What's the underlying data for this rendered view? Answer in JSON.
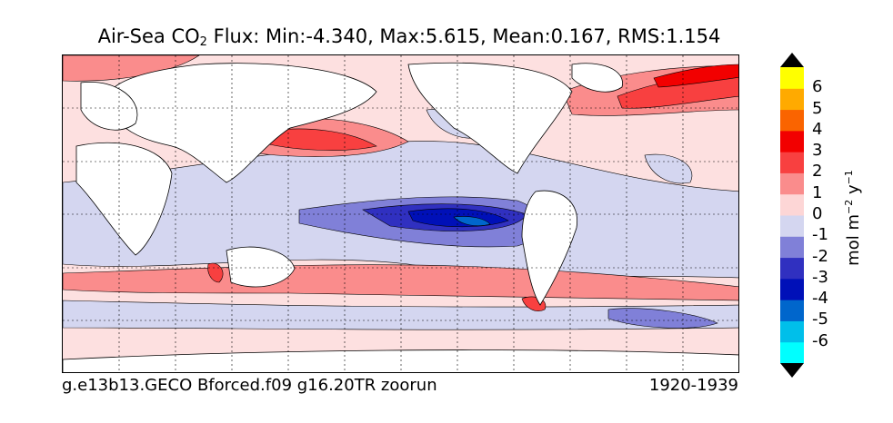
{
  "title": {
    "prefix": "Air-Sea CO",
    "subscript": "2",
    "suffix": " Flux: Min:-4.340, Max:5.615, Mean:0.167, RMS:1.154"
  },
  "footer": {
    "case_name": "g.e13b13.GECO Bforced.f09 g16.20TR zoorun",
    "period": "1920-1939"
  },
  "colorbar": {
    "label_main": "mol m",
    "label_exp1": "−2",
    "label_mid": " y",
    "label_exp2": "−1",
    "ticks": [
      "6",
      "5",
      "4",
      "3",
      "2",
      "1",
      "0",
      "-1",
      "-2",
      "-3",
      "-4",
      "-5",
      "-6"
    ],
    "colors": [
      "#00ffff",
      "#00bfea",
      "#0066cc",
      "#0010b8",
      "#3030c0",
      "#8080d8",
      "#d4d6f0",
      "#fdd6d6",
      "#fa8c8c",
      "#f84040",
      "#f20000",
      "#fa6400",
      "#ffaa00",
      "#ffff00"
    ],
    "extend_min_color": "#000000",
    "extend_max_color": "#000000"
  }
}
